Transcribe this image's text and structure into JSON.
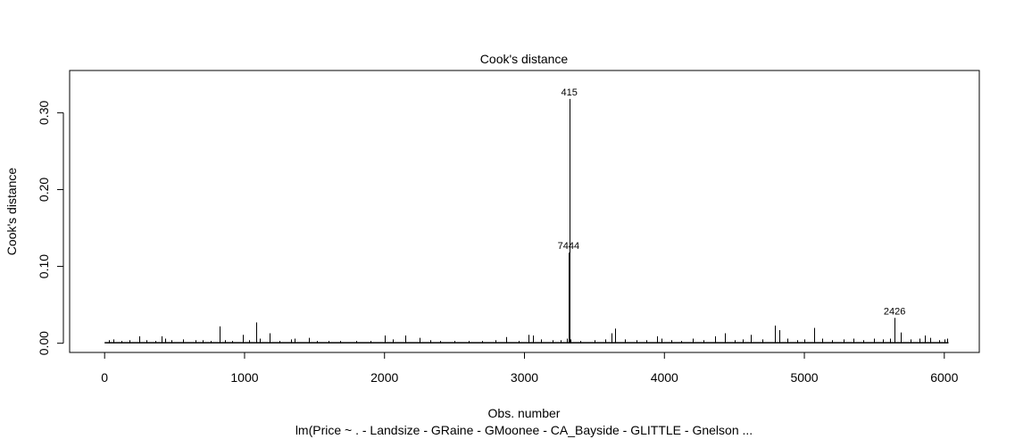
{
  "chart_data": {
    "type": "bar",
    "title": "Cook's distance",
    "xlabel": "Obs. number",
    "ylabel": "Cook's distance",
    "subtitle": "lm(Price ~ . - Landsize - GRaine - GMoonee - CA_Bayside - GLITTLE - Gnelson ...",
    "xlim": [
      -250,
      6250
    ],
    "ylim": [
      -0.012,
      0.355
    ],
    "x_ticks": [
      0,
      1000,
      2000,
      3000,
      4000,
      5000,
      6000
    ],
    "y_ticks": [
      0.0,
      0.1,
      0.2,
      0.3
    ],
    "y_tick_labels": [
      "0.00",
      "0.10",
      "0.20",
      "0.30"
    ],
    "grid": false,
    "labeled_points": [
      {
        "label": "415",
        "x": 3320,
        "y": 0.318
      },
      {
        "label": "7444",
        "x": 3315,
        "y": 0.118
      },
      {
        "label": "2426",
        "x": 5645,
        "y": 0.033
      }
    ],
    "points": [
      {
        "x": 30,
        "y": 0.004
      },
      {
        "x": 60,
        "y": 0.005
      },
      {
        "x": 120,
        "y": 0.003
      },
      {
        "x": 180,
        "y": 0.004
      },
      {
        "x": 250,
        "y": 0.009
      },
      {
        "x": 300,
        "y": 0.004
      },
      {
        "x": 360,
        "y": 0.003
      },
      {
        "x": 410,
        "y": 0.009
      },
      {
        "x": 430,
        "y": 0.006
      },
      {
        "x": 480,
        "y": 0.004
      },
      {
        "x": 560,
        "y": 0.005
      },
      {
        "x": 650,
        "y": 0.004
      },
      {
        "x": 700,
        "y": 0.004
      },
      {
        "x": 760,
        "y": 0.003
      },
      {
        "x": 820,
        "y": 0.022
      },
      {
        "x": 860,
        "y": 0.004
      },
      {
        "x": 910,
        "y": 0.003
      },
      {
        "x": 990,
        "y": 0.011
      },
      {
        "x": 1030,
        "y": 0.004
      },
      {
        "x": 1085,
        "y": 0.027
      },
      {
        "x": 1110,
        "y": 0.006
      },
      {
        "x": 1180,
        "y": 0.013
      },
      {
        "x": 1250,
        "y": 0.003
      },
      {
        "x": 1330,
        "y": 0.005
      },
      {
        "x": 1360,
        "y": 0.006
      },
      {
        "x": 1460,
        "y": 0.007
      },
      {
        "x": 1520,
        "y": 0.003
      },
      {
        "x": 1600,
        "y": 0.003
      },
      {
        "x": 1680,
        "y": 0.003
      },
      {
        "x": 1800,
        "y": 0.003
      },
      {
        "x": 1900,
        "y": 0.003
      },
      {
        "x": 2000,
        "y": 0.01
      },
      {
        "x": 2060,
        "y": 0.005
      },
      {
        "x": 2150,
        "y": 0.01
      },
      {
        "x": 2250,
        "y": 0.007
      },
      {
        "x": 2330,
        "y": 0.004
      },
      {
        "x": 2400,
        "y": 0.003
      },
      {
        "x": 2500,
        "y": 0.003
      },
      {
        "x": 2600,
        "y": 0.003
      },
      {
        "x": 2700,
        "y": 0.003
      },
      {
        "x": 2790,
        "y": 0.004
      },
      {
        "x": 2870,
        "y": 0.008
      },
      {
        "x": 2960,
        "y": 0.003
      },
      {
        "x": 3030,
        "y": 0.011
      },
      {
        "x": 3060,
        "y": 0.01
      },
      {
        "x": 3120,
        "y": 0.005
      },
      {
        "x": 3200,
        "y": 0.004
      },
      {
        "x": 3260,
        "y": 0.004
      },
      {
        "x": 3300,
        "y": 0.006
      },
      {
        "x": 3315,
        "y": 0.118
      },
      {
        "x": 3320,
        "y": 0.318
      },
      {
        "x": 3330,
        "y": 0.005
      },
      {
        "x": 3400,
        "y": 0.003
      },
      {
        "x": 3500,
        "y": 0.004
      },
      {
        "x": 3580,
        "y": 0.005
      },
      {
        "x": 3620,
        "y": 0.013
      },
      {
        "x": 3650,
        "y": 0.019
      },
      {
        "x": 3720,
        "y": 0.005
      },
      {
        "x": 3800,
        "y": 0.004
      },
      {
        "x": 3870,
        "y": 0.004
      },
      {
        "x": 3950,
        "y": 0.009
      },
      {
        "x": 3980,
        "y": 0.006
      },
      {
        "x": 4050,
        "y": 0.004
      },
      {
        "x": 4120,
        "y": 0.003
      },
      {
        "x": 4200,
        "y": 0.006
      },
      {
        "x": 4280,
        "y": 0.004
      },
      {
        "x": 4360,
        "y": 0.009
      },
      {
        "x": 4430,
        "y": 0.013
      },
      {
        "x": 4500,
        "y": 0.004
      },
      {
        "x": 4560,
        "y": 0.005
      },
      {
        "x": 4620,
        "y": 0.011
      },
      {
        "x": 4700,
        "y": 0.005
      },
      {
        "x": 4790,
        "y": 0.023
      },
      {
        "x": 4820,
        "y": 0.017
      },
      {
        "x": 4880,
        "y": 0.006
      },
      {
        "x": 4950,
        "y": 0.004
      },
      {
        "x": 5000,
        "y": 0.005
      },
      {
        "x": 5070,
        "y": 0.02
      },
      {
        "x": 5130,
        "y": 0.006
      },
      {
        "x": 5200,
        "y": 0.004
      },
      {
        "x": 5280,
        "y": 0.005
      },
      {
        "x": 5350,
        "y": 0.006
      },
      {
        "x": 5420,
        "y": 0.004
      },
      {
        "x": 5500,
        "y": 0.006
      },
      {
        "x": 5560,
        "y": 0.005
      },
      {
        "x": 5610,
        "y": 0.006
      },
      {
        "x": 5645,
        "y": 0.033
      },
      {
        "x": 5690,
        "y": 0.014
      },
      {
        "x": 5760,
        "y": 0.005
      },
      {
        "x": 5820,
        "y": 0.006
      },
      {
        "x": 5860,
        "y": 0.01
      },
      {
        "x": 5900,
        "y": 0.007
      },
      {
        "x": 5960,
        "y": 0.004
      },
      {
        "x": 6000,
        "y": 0.005
      },
      {
        "x": 6020,
        "y": 0.006
      }
    ]
  }
}
